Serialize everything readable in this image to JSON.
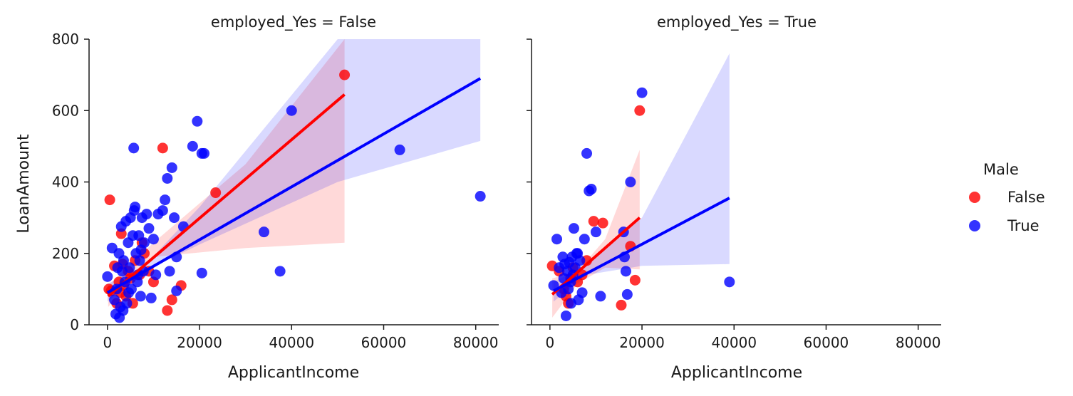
{
  "chart_data": {
    "type": "scatter",
    "ylabel": "LoanAmount",
    "xlabel": "ApplicantIncome",
    "ylim": [
      0,
      800
    ],
    "xlim": [
      -4000,
      85000
    ],
    "xticks": [
      0,
      20000,
      40000,
      60000,
      80000
    ],
    "yticks": [
      0,
      200,
      400,
      600,
      800
    ],
    "grid": false,
    "legend": {
      "title": "Male",
      "placement": "right",
      "entries": [
        {
          "label": "False",
          "color": "#ff0000"
        },
        {
          "label": "True",
          "color": "#0000ff"
        }
      ]
    },
    "colors": {
      "False": "#ff0000",
      "True": "#0000ff"
    },
    "panels": [
      {
        "title": "employed_Yes = False",
        "series": [
          {
            "name": "False",
            "points": [
              [
                500,
                350
              ],
              [
                300,
                100
              ],
              [
                800,
                95
              ],
              [
                1500,
                165
              ],
              [
                2000,
                60
              ],
              [
                2500,
                120
              ],
              [
                3000,
                255
              ],
              [
                3500,
                110
              ],
              [
                4000,
                80
              ],
              [
                4500,
                150
              ],
              [
                5000,
                130
              ],
              [
                6000,
                180
              ],
              [
                7000,
                140
              ],
              [
                8000,
                200
              ],
              [
                9000,
                150
              ],
              [
                10000,
                120
              ],
              [
                12000,
                495
              ],
              [
                13000,
                40
              ],
              [
                14000,
                70
              ],
              [
                16000,
                110
              ],
              [
                23500,
                370
              ],
              [
                51500,
                700
              ],
              [
                2800,
                90
              ],
              [
                3300,
                170
              ],
              [
                5500,
                60
              ],
              [
                7500,
                230
              ]
            ],
            "fit": {
              "x": [
                150,
                51500
              ],
              "y": [
                80,
                645
              ]
            },
            "ci_upper": [
              [
                150,
                110
              ],
              [
                10000,
                230
              ],
              [
                30000,
                450
              ],
              [
                51500,
                800
              ]
            ],
            "ci_lower": [
              [
                150,
                50
              ],
              [
                10000,
                190
              ],
              [
                30000,
                215
              ],
              [
                51500,
                230
              ]
            ]
          },
          {
            "name": "True",
            "points": [
              [
                0,
                135
              ],
              [
                1000,
                215
              ],
              [
                1500,
                70
              ],
              [
                1800,
                30
              ],
              [
                2000,
                100
              ],
              [
                2200,
                160
              ],
              [
                2500,
                200
              ],
              [
                2800,
                50
              ],
              [
                3000,
                275
              ],
              [
                3200,
                150
              ],
              [
                3500,
                180
              ],
              [
                3800,
                120
              ],
              [
                4000,
                290
              ],
              [
                4200,
                60
              ],
              [
                4500,
                230
              ],
              [
                4800,
                160
              ],
              [
                5000,
                300
              ],
              [
                5200,
                100
              ],
              [
                5500,
                250
              ],
              [
                5700,
                495
              ],
              [
                5800,
                320
              ],
              [
                6000,
                330
              ],
              [
                6200,
                200
              ],
              [
                6500,
                120
              ],
              [
                6800,
                250
              ],
              [
                7000,
                180
              ],
              [
                7200,
                80
              ],
              [
                7500,
                300
              ],
              [
                7800,
                150
              ],
              [
                8000,
                230
              ],
              [
                8500,
                310
              ],
              [
                9000,
                270
              ],
              [
                9500,
                75
              ],
              [
                10000,
                240
              ],
              [
                10500,
                140
              ],
              [
                11000,
                310
              ],
              [
                12000,
                320
              ],
              [
                12500,
                350
              ],
              [
                13000,
                410
              ],
              [
                13500,
                150
              ],
              [
                14000,
                440
              ],
              [
                14500,
                300
              ],
              [
                15000,
                190
              ],
              [
                15000,
                95
              ],
              [
                16500,
                275
              ],
              [
                18500,
                500
              ],
              [
                19500,
                570
              ],
              [
                20500,
                480
              ],
              [
                21000,
                480
              ],
              [
                20500,
                145
              ],
              [
                34000,
                260
              ],
              [
                37500,
                150
              ],
              [
                40000,
                600
              ],
              [
                63500,
                490
              ],
              [
                81000,
                360
              ],
              [
                2600,
                20
              ],
              [
                3400,
                40
              ],
              [
                4600,
                90
              ],
              [
                6600,
                140
              ],
              [
                7300,
                210
              ]
            ],
            "fit": {
              "x": [
                0,
                81000
              ],
              "y": [
                90,
                690
              ]
            },
            "ci_upper": [
              [
                0,
                115
              ],
              [
                8000,
                165
              ],
              [
                20000,
                330
              ],
              [
                50000,
                800
              ],
              [
                81000,
                800
              ]
            ],
            "ci_lower": [
              [
                0,
                65
              ],
              [
                8000,
                150
              ],
              [
                20000,
                225
              ],
              [
                50000,
                400
              ],
              [
                81000,
                515
              ]
            ]
          }
        ]
      },
      {
        "title": "employed_Yes = True",
        "series": [
          {
            "name": "False",
            "points": [
              [
                500,
                165
              ],
              [
                2000,
                150
              ],
              [
                3000,
                100
              ],
              [
                3500,
                80
              ],
              [
                4000,
                60
              ],
              [
                4500,
                130
              ],
              [
                5000,
                160
              ],
              [
                6000,
                120
              ],
              [
                7000,
                140
              ],
              [
                8000,
                180
              ],
              [
                9500,
                290
              ],
              [
                11500,
                285
              ],
              [
                15500,
                55
              ],
              [
                17500,
                220
              ],
              [
                18500,
                125
              ],
              [
                19500,
                600
              ]
            ],
            "fit": {
              "x": [
                500,
                19500
              ],
              "y": [
                85,
                300
              ]
            },
            "ci_upper": [
              [
                500,
                130
              ],
              [
                6000,
                150
              ],
              [
                12000,
                240
              ],
              [
                19500,
                490
              ]
            ],
            "ci_lower": [
              [
                500,
                20
              ],
              [
                6000,
                115
              ],
              [
                12000,
                160
              ],
              [
                19500,
                155
              ]
            ]
          },
          {
            "name": "True",
            "points": [
              [
                800,
                110
              ],
              [
                1500,
                240
              ],
              [
                2000,
                160
              ],
              [
                2500,
                90
              ],
              [
                2800,
                190
              ],
              [
                3000,
                130
              ],
              [
                3200,
                170
              ],
              [
                3500,
                25
              ],
              [
                3800,
                150
              ],
              [
                4000,
                100
              ],
              [
                4200,
                175
              ],
              [
                4500,
                120
              ],
              [
                4800,
                190
              ],
              [
                5000,
                140
              ],
              [
                5200,
                270
              ],
              [
                5500,
                160
              ],
              [
                5800,
                200
              ],
              [
                6000,
                200
              ],
              [
                6500,
                180
              ],
              [
                7000,
                90
              ],
              [
                7500,
                240
              ],
              [
                8000,
                480
              ],
              [
                8500,
                375
              ],
              [
                9000,
                380
              ],
              [
                10000,
                260
              ],
              [
                11000,
                80
              ],
              [
                16000,
                260
              ],
              [
                16200,
                190
              ],
              [
                16500,
                150
              ],
              [
                16800,
                85
              ],
              [
                17500,
                400
              ],
              [
                20000,
                650
              ],
              [
                39000,
                120
              ],
              [
                6200,
                70
              ],
              [
                4600,
                60
              ]
            ],
            "fit": {
              "x": [
                800,
                39000
              ],
              "y": [
                95,
                355
              ]
            },
            "ci_upper": [
              [
                800,
                120
              ],
              [
                8000,
                165
              ],
              [
                20000,
                300
              ],
              [
                39000,
                760
              ]
            ],
            "ci_lower": [
              [
                800,
                65
              ],
              [
                8000,
                140
              ],
              [
                20000,
                165
              ],
              [
                39000,
                170
              ]
            ]
          }
        ]
      }
    ]
  }
}
